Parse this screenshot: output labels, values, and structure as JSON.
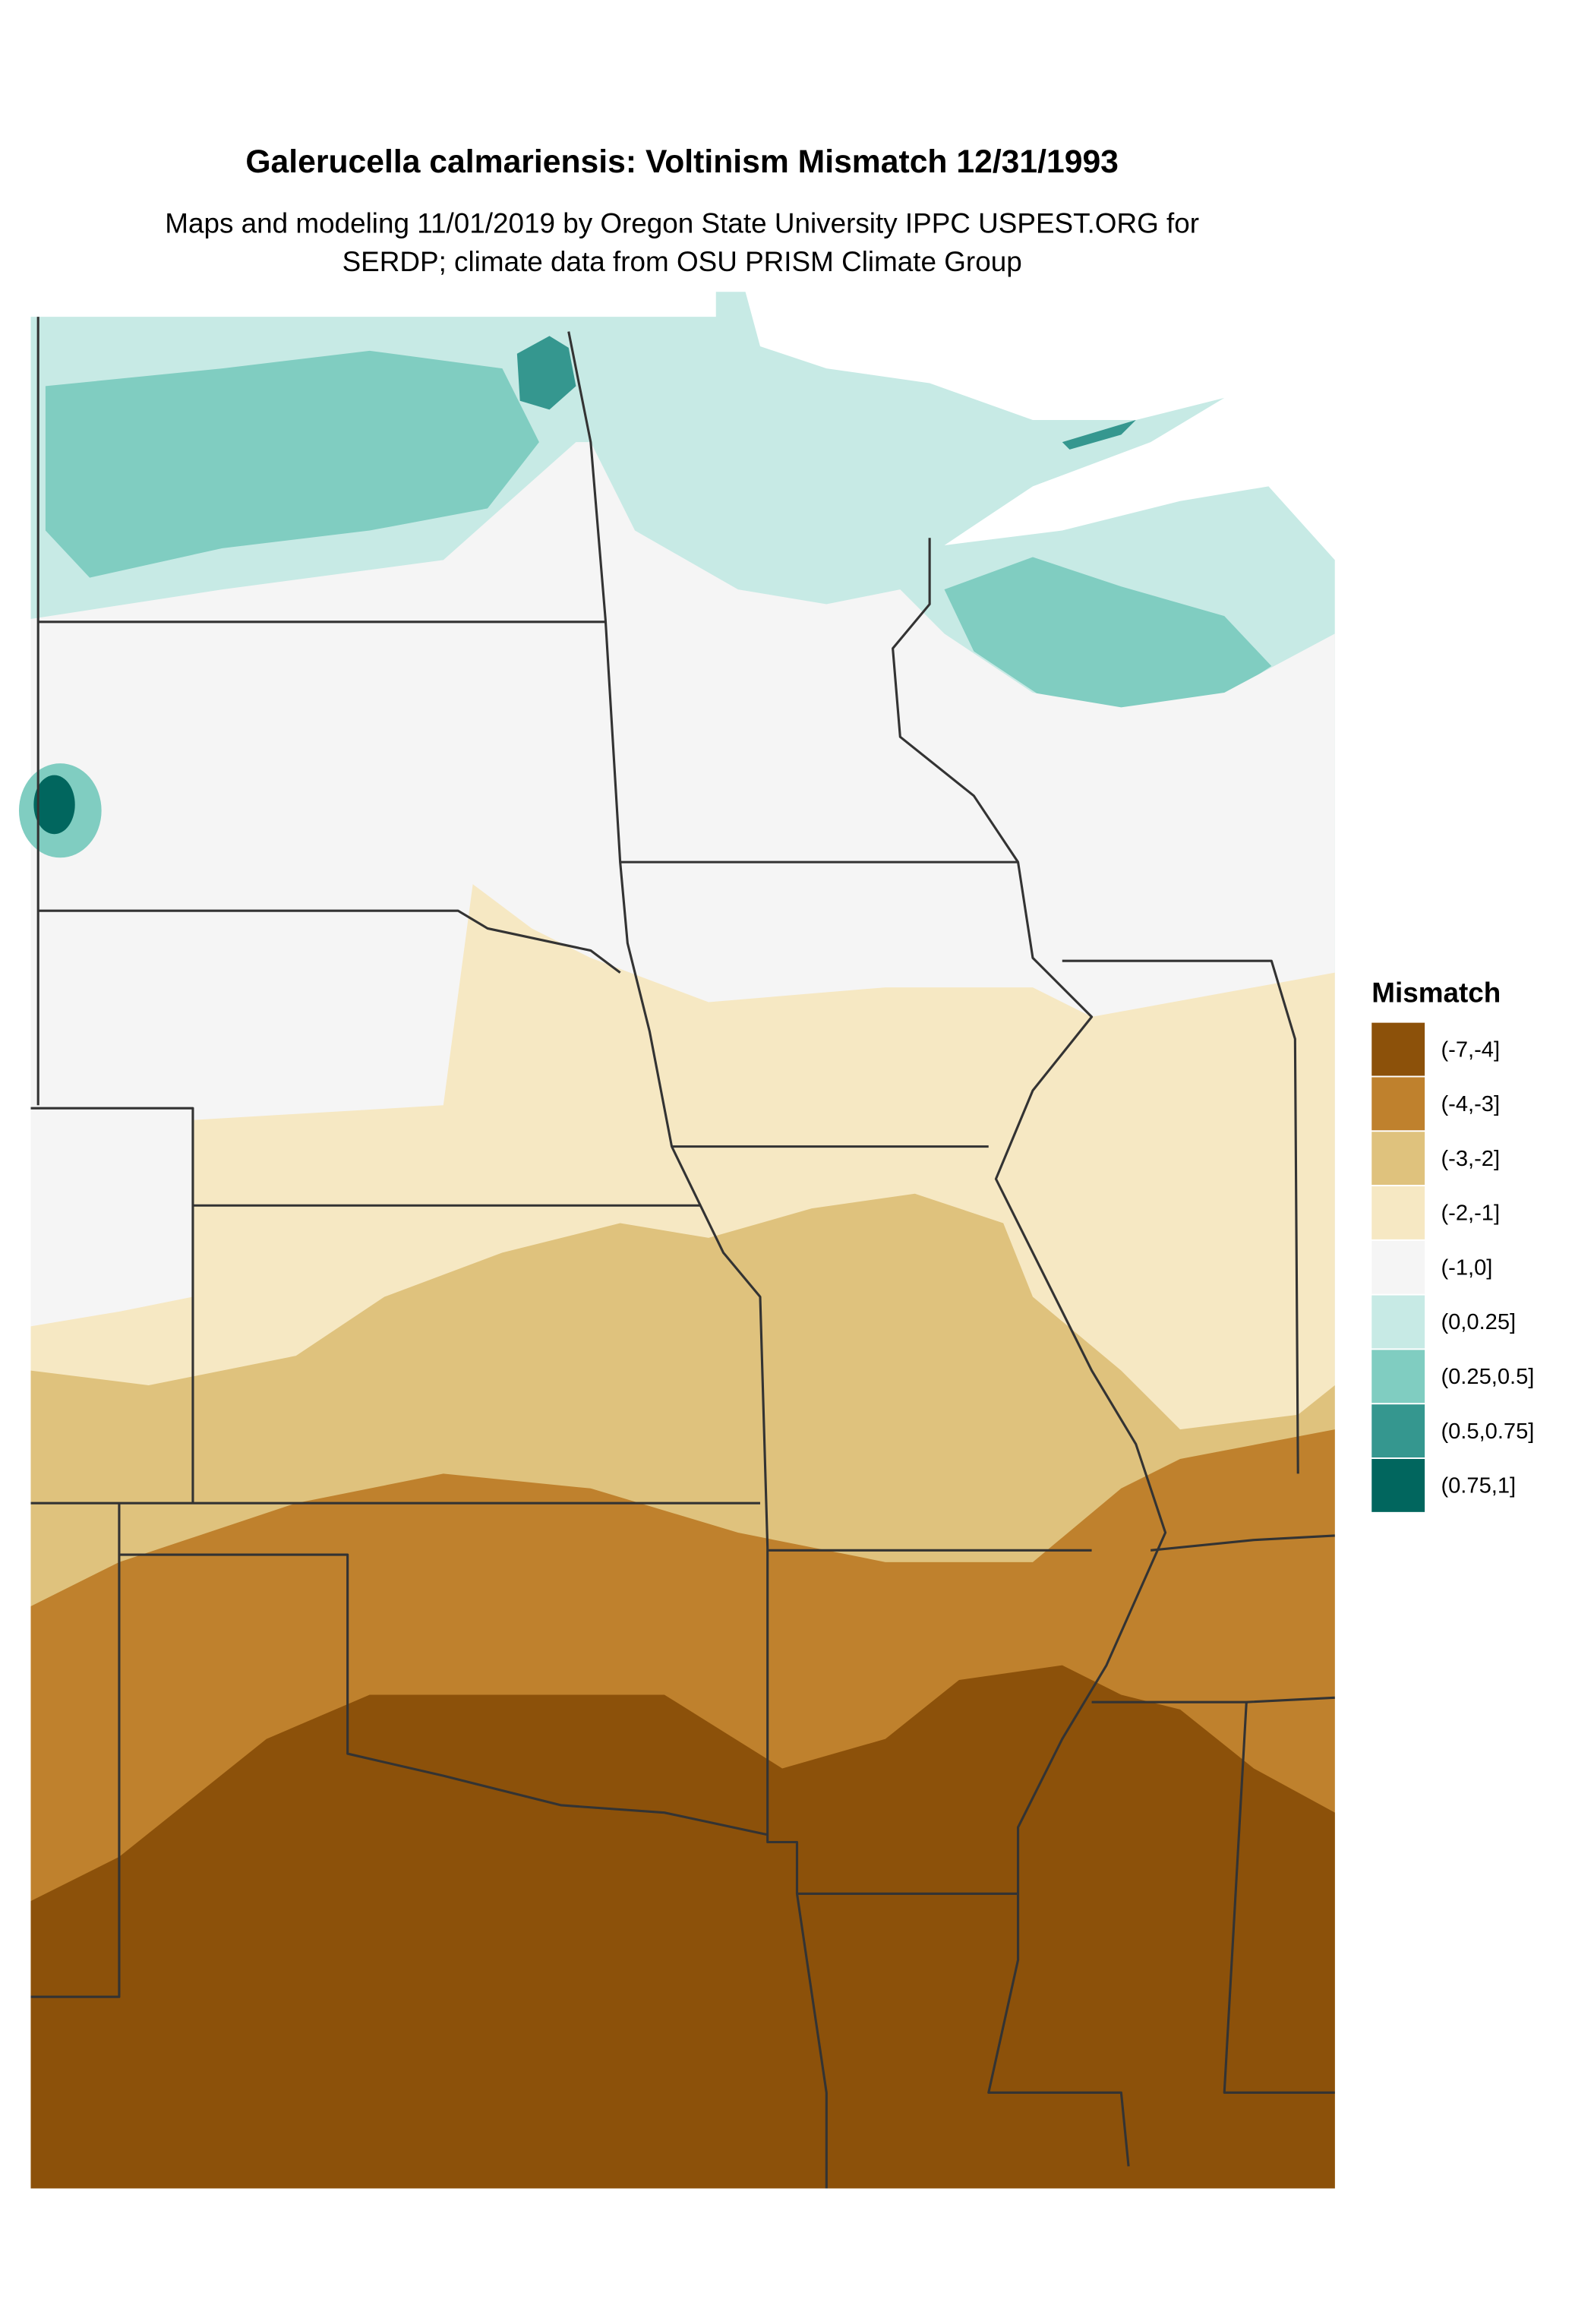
{
  "title": "Galerucella calmariensis: Voltinism Mismatch 12/31/1993",
  "subtitle": [
    "Maps and modeling 11/01/2019 by Oregon State University IPPC USPEST.ORG for",
    "SERDP; climate data from OSU PRISM Climate Group"
  ],
  "legend": {
    "title": "Mismatch",
    "items": [
      {
        "label": "(-7,-4]",
        "color": "#8c510a"
      },
      {
        "label": "(-4,-3]",
        "color": "#bf812d"
      },
      {
        "label": "(-3,-2]",
        "color": "#dfc27d"
      },
      {
        "label": "(-2,-1]",
        "color": "#f6e8c3"
      },
      {
        "label": "(-1,0]",
        "color": "#f5f5f5"
      },
      {
        "label": "(0,0.25]",
        "color": "#c7eae5"
      },
      {
        "label": "(0.25,0.5]",
        "color": "#80cdc1"
      },
      {
        "label": "(0.5,0.75]",
        "color": "#35978f"
      },
      {
        "label": "(0.75,1]",
        "color": "#01665e"
      }
    ]
  }
}
